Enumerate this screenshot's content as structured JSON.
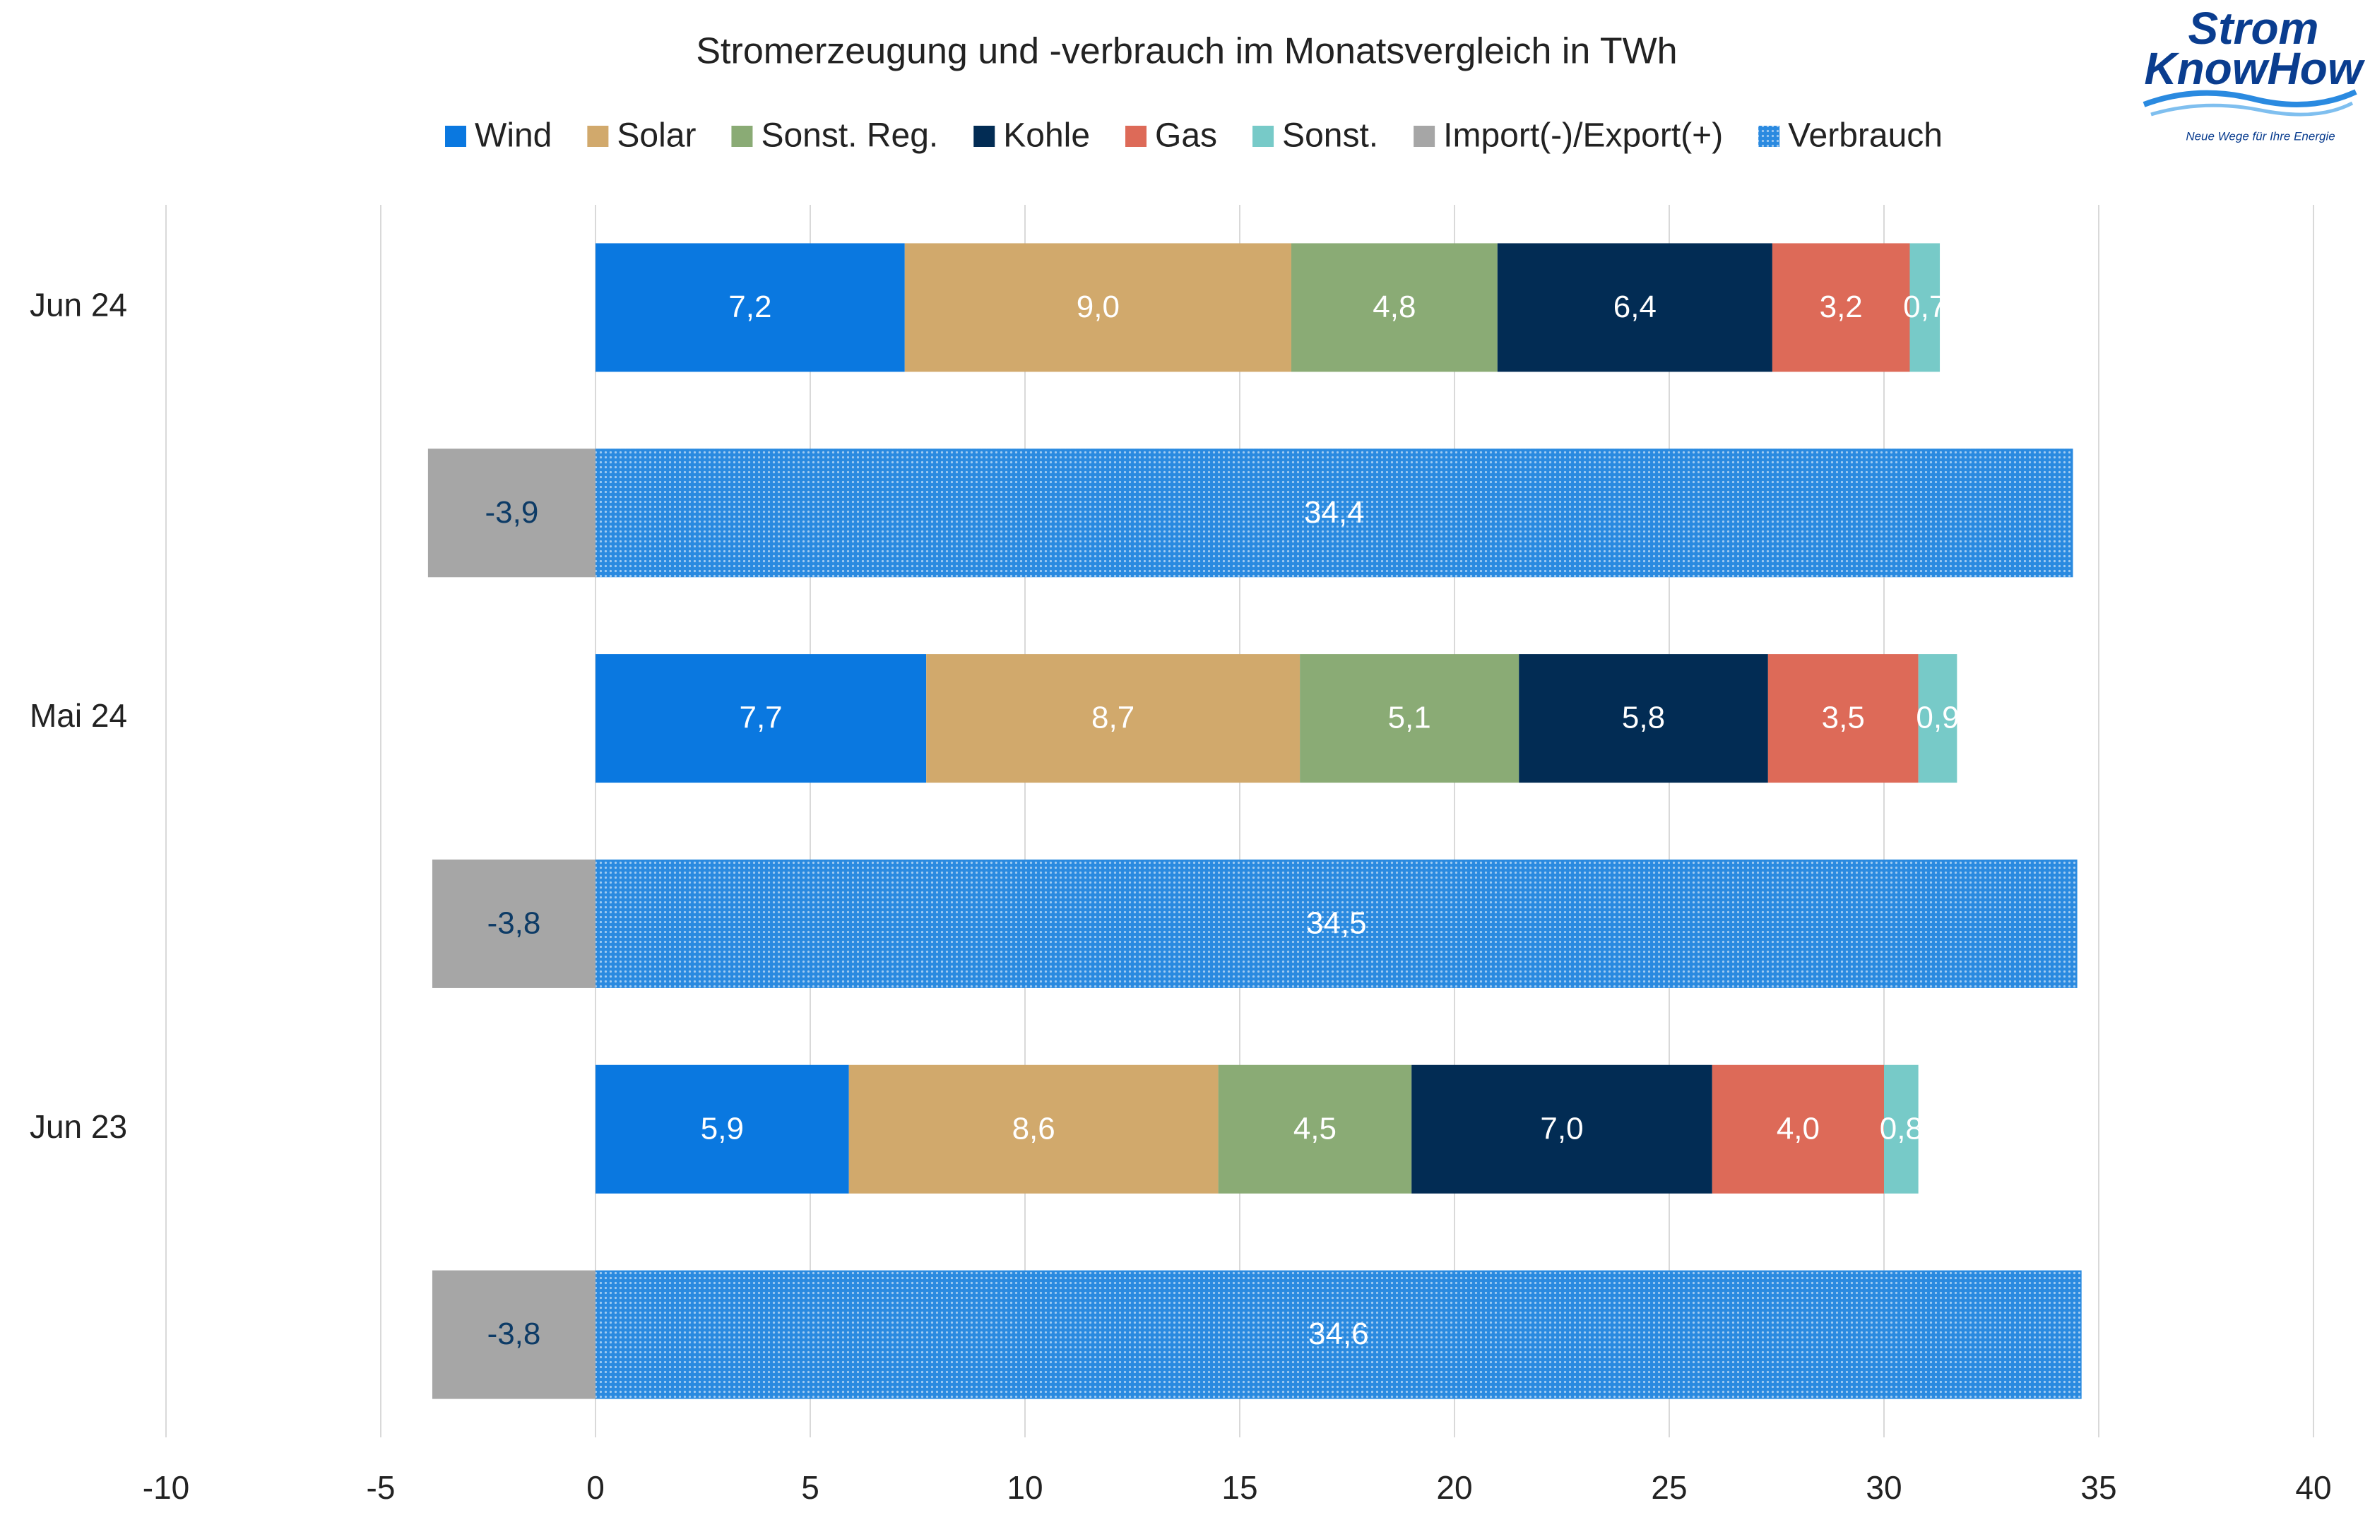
{
  "chart_data": {
    "type": "stacked-hbar",
    "title": "Stromerzeugung und -verbrauch im Monatsvergleich in TWh",
    "categories": [
      "Jun 24",
      null,
      "Mai 24",
      null,
      "Jun 23",
      null
    ],
    "series": [
      {
        "name": "Wind",
        "color": "#0a78e0",
        "label_color": "#ffffff",
        "values": [
          7.2,
          null,
          7.7,
          null,
          5.9,
          null
        ],
        "value_labels": [
          "7,2",
          null,
          "7,7",
          null,
          "5,9",
          null
        ]
      },
      {
        "name": "Solar",
        "color": "#d1a96c",
        "label_color": "#ffffff",
        "values": [
          9.0,
          null,
          8.7,
          null,
          8.6,
          null
        ],
        "value_labels": [
          "9,0",
          null,
          "8,7",
          null,
          "8,6",
          null
        ]
      },
      {
        "name": "Sonst. Reg.",
        "color": "#8aab75",
        "label_color": "#ffffff",
        "values": [
          4.8,
          null,
          5.1,
          null,
          4.5,
          null
        ],
        "value_labels": [
          "4,8",
          null,
          "5,1",
          null,
          "4,5",
          null
        ]
      },
      {
        "name": "Kohle",
        "color": "#022c54",
        "label_color": "#ffffff",
        "values": [
          6.4,
          null,
          5.8,
          null,
          7.0,
          null
        ],
        "value_labels": [
          "6,4",
          null,
          "5,8",
          null,
          "7,0",
          null
        ]
      },
      {
        "name": "Gas",
        "color": "#dd6a58",
        "label_color": "#ffffff",
        "values": [
          3.2,
          null,
          3.5,
          null,
          4.0,
          null
        ],
        "value_labels": [
          "3,2",
          null,
          "3,5",
          null,
          "4,0",
          null
        ]
      },
      {
        "name": "Sonst.",
        "color": "#77cac8",
        "label_color": "#ffffff",
        "values": [
          0.7,
          null,
          0.9,
          null,
          0.8,
          null
        ],
        "value_labels": [
          "0,7",
          null,
          "0,9",
          null,
          "0,8",
          null
        ]
      },
      {
        "name": "Import(-)/Export(+)",
        "color": "#a6a6a6",
        "label_color": "#0d3b66",
        "values": [
          null,
          -3.9,
          null,
          -3.8,
          null,
          -3.8
        ],
        "value_labels": [
          null,
          "-3,9",
          null,
          "-3,8",
          null,
          "-3,8"
        ]
      },
      {
        "name": "Verbrauch",
        "color": "#2a8ae0",
        "pattern": "dots",
        "label_color": "#ffffff",
        "values": [
          null,
          34.4,
          null,
          34.5,
          null,
          34.6
        ],
        "value_labels": [
          null,
          "34,4",
          null,
          "34,5",
          null,
          "34,6"
        ]
      }
    ],
    "xlim": [
      -10,
      40
    ],
    "xticks": [
      -10,
      -5,
      0,
      5,
      10,
      15,
      20,
      25,
      30,
      35,
      40
    ],
    "grid": true
  },
  "logo": {
    "line1": "Strom",
    "line2": "KnowHow",
    "tagline": "Neue Wege für Ihre Energie"
  }
}
